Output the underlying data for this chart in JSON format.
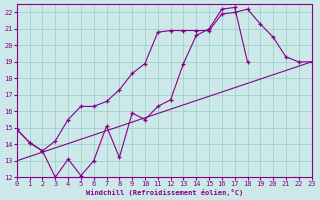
{
  "xlabel": "Windchill (Refroidissement éolien,°C)",
  "bg_color": "#cce8e8",
  "line_color": "#880088",
  "grid_color": "#99cccc",
  "xmin": 0,
  "xmax": 23,
  "ymin": 12,
  "ymax": 22.5,
  "s1x": [
    0,
    1,
    2,
    3,
    4,
    5,
    6,
    7,
    8,
    9,
    10,
    11,
    12,
    13,
    14,
    15,
    16,
    17,
    18
  ],
  "s1y": [
    14.9,
    14.1,
    13.6,
    12.0,
    13.1,
    12.1,
    13.0,
    15.1,
    13.2,
    15.9,
    15.5,
    16.3,
    16.7,
    18.9,
    20.6,
    21.0,
    22.2,
    22.3,
    19.0
  ],
  "s2x": [
    0,
    1,
    2,
    3,
    4,
    5,
    6,
    7,
    8,
    9,
    10,
    11,
    12,
    13,
    14,
    15,
    16,
    17,
    18,
    19,
    20,
    21,
    22,
    23
  ],
  "s2y": [
    14.9,
    14.1,
    13.6,
    14.2,
    15.5,
    16.3,
    16.3,
    16.6,
    17.3,
    18.3,
    18.9,
    20.8,
    20.9,
    20.9,
    20.9,
    20.9,
    21.9,
    22.0,
    22.2,
    21.3,
    20.5,
    19.3,
    19.0,
    19.0
  ],
  "s3x": [
    0,
    23
  ],
  "s3y": [
    13.0,
    19.0
  ]
}
